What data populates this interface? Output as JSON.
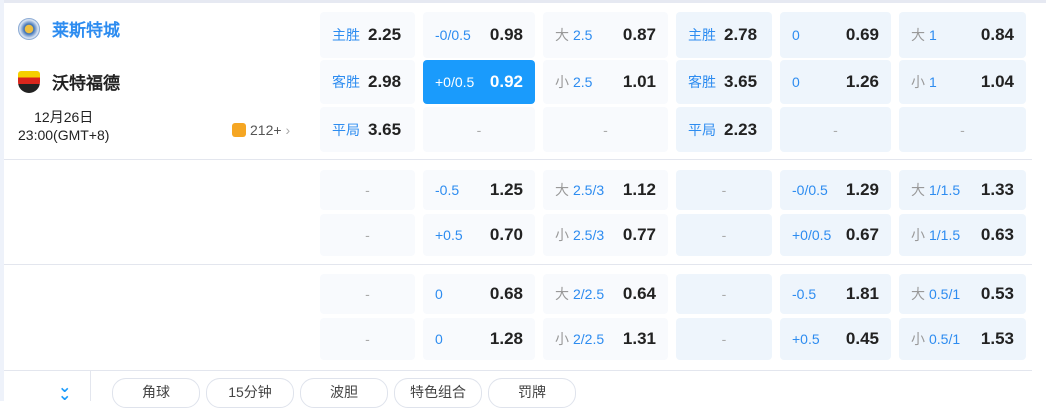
{
  "match": {
    "home": "莱斯特城",
    "away": "沃特福德",
    "date": "12月26日",
    "time": "23:00(GMT+8)",
    "more_count": "212+"
  },
  "colors": {
    "accent": "#1a9bfc",
    "home": "#2d8cf0"
  },
  "groups": [
    [
      [
        {
          "t": "wl",
          "l": "主胜",
          "v": "2.25"
        },
        {
          "t": "hc",
          "l": "-0/0.5",
          "v": "0.98"
        },
        {
          "t": "ou",
          "p": "大",
          "l": "2.5",
          "v": "0.87"
        },
        {
          "t": "wl",
          "l": "主胜",
          "v": "2.78"
        },
        {
          "t": "hc",
          "l": "0",
          "v": "0.69"
        },
        {
          "t": "ou",
          "p": "大",
          "l": "1",
          "v": "0.84"
        }
      ],
      [
        {
          "t": "wl",
          "l": "客胜",
          "v": "2.98"
        },
        {
          "t": "hc",
          "l": "+0/0.5",
          "v": "0.92",
          "sel": true
        },
        {
          "t": "ou",
          "p": "小",
          "l": "2.5",
          "v": "1.01"
        },
        {
          "t": "wl",
          "l": "客胜",
          "v": "3.65"
        },
        {
          "t": "hc",
          "l": "0",
          "v": "1.26"
        },
        {
          "t": "ou",
          "p": "小",
          "l": "1",
          "v": "1.04"
        }
      ],
      [
        {
          "t": "wl",
          "l": "平局",
          "v": "3.65"
        },
        {
          "t": "e",
          "v": "-"
        },
        {
          "t": "e",
          "v": "-"
        },
        {
          "t": "wl",
          "l": "平局",
          "v": "2.23"
        },
        {
          "t": "e",
          "v": "-"
        },
        {
          "t": "e",
          "v": "-"
        }
      ]
    ],
    [
      [
        {
          "t": "e",
          "v": "-"
        },
        {
          "t": "hc",
          "l": "-0.5",
          "v": "1.25"
        },
        {
          "t": "ou",
          "p": "大",
          "l": "2.5/3",
          "v": "1.12"
        },
        {
          "t": "e",
          "v": "-"
        },
        {
          "t": "hc",
          "l": "-0/0.5",
          "v": "1.29"
        },
        {
          "t": "ou",
          "p": "大",
          "l": "1/1.5",
          "v": "1.33"
        }
      ],
      [
        {
          "t": "e",
          "v": "-"
        },
        {
          "t": "hc",
          "l": "+0.5",
          "v": "0.70"
        },
        {
          "t": "ou",
          "p": "小",
          "l": "2.5/3",
          "v": "0.77"
        },
        {
          "t": "e",
          "v": "-"
        },
        {
          "t": "hc",
          "l": "+0/0.5",
          "v": "0.67"
        },
        {
          "t": "ou",
          "p": "小",
          "l": "1/1.5",
          "v": "0.63"
        }
      ]
    ],
    [
      [
        {
          "t": "e",
          "v": "-"
        },
        {
          "t": "hc",
          "l": "0",
          "v": "0.68"
        },
        {
          "t": "ou",
          "p": "大",
          "l": "2/2.5",
          "v": "0.64"
        },
        {
          "t": "e",
          "v": "-"
        },
        {
          "t": "hc",
          "l": "-0.5",
          "v": "1.81"
        },
        {
          "t": "ou",
          "p": "大",
          "l": "0.5/1",
          "v": "0.53"
        }
      ],
      [
        {
          "t": "e",
          "v": "-"
        },
        {
          "t": "hc",
          "l": "0",
          "v": "1.28"
        },
        {
          "t": "ou",
          "p": "小",
          "l": "2/2.5",
          "v": "1.31"
        },
        {
          "t": "e",
          "v": "-"
        },
        {
          "t": "hc",
          "l": "+0.5",
          "v": "0.45"
        },
        {
          "t": "ou",
          "p": "小",
          "l": "0.5/1",
          "v": "1.53"
        }
      ]
    ]
  ],
  "tabs": [
    "角球",
    "15分钟",
    "波胆",
    "特色组合",
    "罚牌"
  ]
}
